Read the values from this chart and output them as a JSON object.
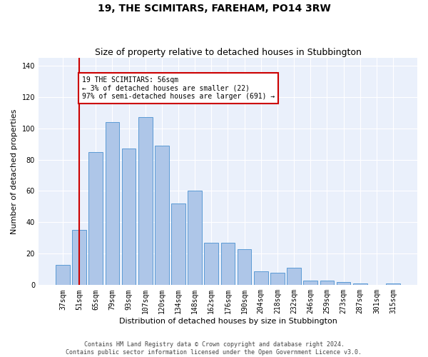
{
  "title": "19, THE SCIMITARS, FAREHAM, PO14 3RW",
  "subtitle": "Size of property relative to detached houses in Stubbington",
  "xlabel": "Distribution of detached houses by size in Stubbington",
  "ylabel": "Number of detached properties",
  "categories": [
    "37sqm",
    "51sqm",
    "65sqm",
    "79sqm",
    "93sqm",
    "107sqm",
    "120sqm",
    "134sqm",
    "148sqm",
    "162sqm",
    "176sqm",
    "190sqm",
    "204sqm",
    "218sqm",
    "232sqm",
    "246sqm",
    "259sqm",
    "273sqm",
    "287sqm",
    "301sqm",
    "315sqm"
  ],
  "values": [
    13,
    35,
    85,
    104,
    87,
    107,
    89,
    52,
    60,
    27,
    27,
    23,
    9,
    8,
    11,
    3,
    3,
    2,
    1,
    0,
    1
  ],
  "bar_color": "#aec6e8",
  "bar_edgecolor": "#5b9bd5",
  "ref_line_x": 1.0,
  "ref_line_color": "#cc0000",
  "annotation_text": "19 THE SCIMITARS: 56sqm\n← 3% of detached houses are smaller (22)\n97% of semi-detached houses are larger (691) →",
  "annotation_box_color": "#cc0000",
  "annotation_bg": "#ffffff",
  "ylim": [
    0,
    145
  ],
  "yticks": [
    0,
    20,
    40,
    60,
    80,
    100,
    120,
    140
  ],
  "background_color": "#eaf0fb",
  "grid_color": "#ffffff",
  "footer_line1": "Contains HM Land Registry data © Crown copyright and database right 2024.",
  "footer_line2": "Contains public sector information licensed under the Open Government Licence v3.0.",
  "title_fontsize": 10,
  "subtitle_fontsize": 9,
  "tick_fontsize": 7,
  "ylabel_fontsize": 8,
  "xlabel_fontsize": 8,
  "annotation_fontsize": 7,
  "footer_fontsize": 6
}
